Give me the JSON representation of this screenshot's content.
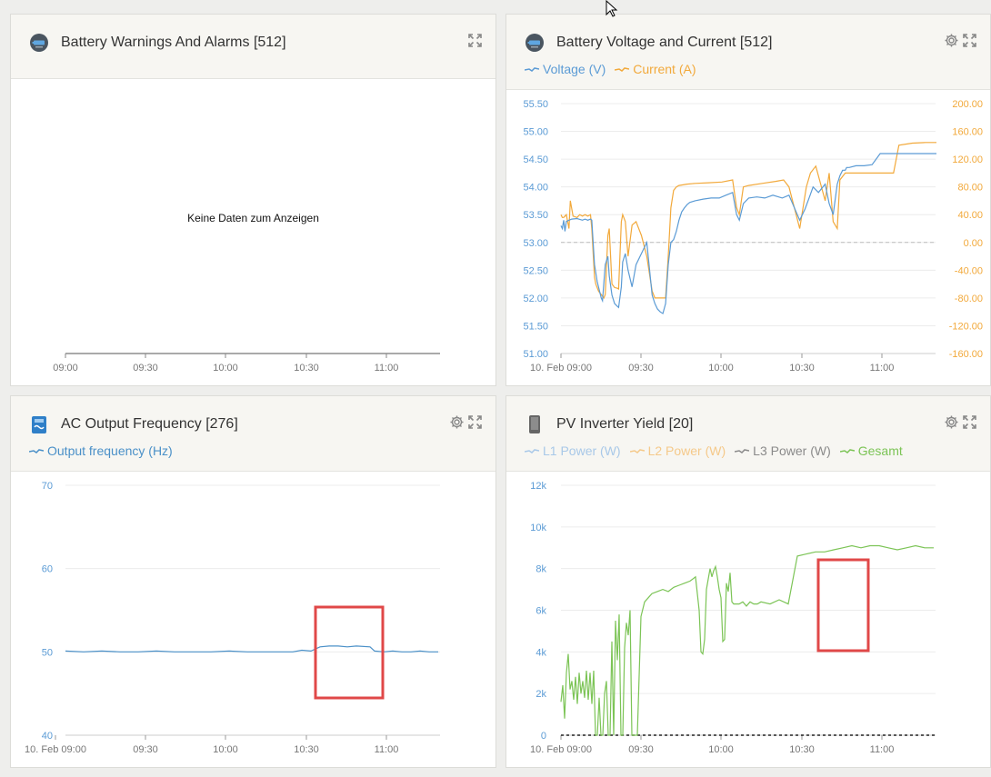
{
  "colors": {
    "voltage": "#5b9bd5",
    "current": "#f2a93b",
    "frequency": "#4a90c8",
    "l1": "#a8c8e8",
    "l2": "#f5c98a",
    "l3": "#8a8a8a",
    "gesamt": "#7cc456",
    "highlight": "#e04848",
    "axis_left": "#5b9bd5",
    "axis_right": "#f2a93b"
  },
  "panels": {
    "warnings": {
      "title": "Battery Warnings And Alarms [512]",
      "icon": "battery-icon",
      "no_data": "Keine Daten zum Anzeigen",
      "x_ticks": [
        "09:00",
        "09:30",
        "10:00",
        "10:30",
        "11:00"
      ]
    },
    "battery": {
      "title": "Battery Voltage and Current [512]",
      "icon": "battery-icon",
      "legend": [
        "Voltage (V)",
        "Current (A)"
      ]
    },
    "ac": {
      "title": "AC Output Frequency [276]",
      "icon": "inverter-icon",
      "legend": [
        "Output frequency (Hz)"
      ]
    },
    "pv": {
      "title": "PV Inverter Yield [20]",
      "icon": "pv-inverter-icon",
      "legend": [
        "L1 Power (W)",
        "L2 Power (W)",
        "L3 Power (W)",
        "Gesamt"
      ]
    }
  },
  "chart_data": [
    {
      "type": "line",
      "x_ticks": [
        "10. Feb 09:00",
        "09:30",
        "10:00",
        "10:30",
        "11:00"
      ],
      "y_ticks": [
        "55.50",
        "55.00",
        "54.50",
        "54.00",
        "53.50",
        "53.00",
        "52.50",
        "52.00",
        "51.50",
        "51.00"
      ],
      "y2_ticks": [
        "200.00",
        "160.00",
        "120.00",
        "80.00",
        "40.00",
        "0.00",
        "-40.00",
        "-80.00",
        "-120.00",
        "-160.00"
      ],
      "ylim": [
        51,
        55.5
      ],
      "y2lim": [
        -160,
        200
      ],
      "series": [
        {
          "name": "Voltage (V)",
          "x": [
            0,
            1,
            2,
            3,
            4,
            6,
            8,
            12,
            16,
            18,
            20,
            22,
            23,
            25,
            27,
            30,
            31,
            33,
            35,
            36,
            38,
            40,
            42,
            43,
            45,
            46,
            48,
            50,
            53,
            56,
            60,
            64,
            68,
            70,
            72,
            74,
            76,
            78,
            80,
            82,
            84,
            86,
            88,
            90,
            92,
            94,
            96,
            100,
            106,
            112,
            118,
            123,
            128,
            131,
            133,
            136,
            140,
            146,
            152,
            158,
            165,
            170,
            178,
            182,
            185,
            188,
            192,
            197,
            200,
            203,
            206,
            208,
            210,
            212,
            213,
            215,
            220,
            226,
            232,
            238,
            240,
            250,
            262,
            275,
            280
          ],
          "y": [
            53.3,
            53.25,
            53.4,
            53.2,
            53.38,
            53.4,
            53.42,
            53.43,
            53.4,
            53.42,
            53.4,
            53.42,
            53.4,
            52.6,
            52.3,
            52.0,
            51.95,
            52.6,
            52.75,
            52.4,
            52.05,
            51.9,
            51.85,
            51.83,
            52.2,
            52.65,
            52.8,
            52.5,
            52.2,
            52.6,
            52.8,
            53.0,
            52.05,
            51.9,
            51.8,
            51.75,
            51.72,
            51.9,
            52.6,
            53.0,
            53.05,
            53.2,
            53.4,
            53.55,
            53.62,
            53.68,
            53.72,
            53.75,
            53.78,
            53.8,
            53.8,
            53.85,
            53.9,
            53.5,
            53.4,
            53.7,
            53.8,
            53.82,
            53.8,
            53.85,
            53.8,
            53.85,
            53.4,
            53.6,
            53.8,
            54.0,
            53.9,
            54.05,
            53.7,
            53.5,
            54.05,
            54.2,
            54.3,
            54.3,
            54.35,
            54.35,
            54.38,
            54.38,
            54.4,
            54.6,
            54.6,
            54.6,
            54.6,
            54.6,
            54.6
          ]
        },
        {
          "name": "Current (A)",
          "x": [
            0,
            1,
            2,
            4,
            6,
            7,
            9,
            12,
            14,
            16,
            18,
            20,
            22,
            23,
            25,
            26,
            28,
            30,
            32,
            33,
            35,
            36,
            38,
            40,
            42,
            43,
            45,
            46,
            48,
            50,
            53,
            56,
            60,
            64,
            68,
            70,
            72,
            74,
            76,
            78,
            80,
            82,
            84,
            86,
            88,
            94,
            100,
            110,
            120,
            128,
            131,
            133,
            136,
            140,
            150,
            160,
            166,
            170,
            178,
            183,
            186,
            190,
            197,
            200,
            203,
            206,
            208,
            212,
            222,
            232,
            242,
            248,
            252,
            262,
            272,
            280
          ],
          "y": [
            40,
            36,
            36,
            40,
            20,
            60,
            38,
            36,
            40,
            38,
            40,
            38,
            40,
            20,
            -50,
            -60,
            -70,
            -75,
            -80,
            -75,
            10,
            20,
            -60,
            -65,
            -66,
            -67,
            30,
            40,
            30,
            -20,
            25,
            30,
            10,
            -20,
            -70,
            -80,
            -80,
            -80,
            -80,
            -80,
            -20,
            50,
            75,
            80,
            82,
            84,
            85,
            86,
            87,
            90,
            50,
            40,
            80,
            82,
            85,
            88,
            90,
            80,
            20,
            80,
            100,
            110,
            60,
            100,
            30,
            20,
            90,
            100,
            100,
            100,
            100,
            100,
            140,
            143,
            144,
            144
          ]
        }
      ]
    },
    {
      "type": "line",
      "x_ticks": [
        "10. Feb 09:00",
        "09:30",
        "10:00",
        "10:30",
        "11:00"
      ],
      "y_ticks": [
        "70",
        "60",
        "50",
        "40"
      ],
      "ylim": [
        40,
        70
      ],
      "series": [
        {
          "name": "Output frequency (Hz)",
          "x": [
            0,
            20,
            40,
            60,
            80,
            100,
            120,
            140,
            160,
            180,
            200,
            230,
            250,
            260,
            270,
            280,
            290,
            300,
            310,
            320,
            335,
            340,
            350,
            360,
            370,
            380,
            390,
            400,
            410
          ],
          "y": [
            50.1,
            50.0,
            50.1,
            50.0,
            50.0,
            50.1,
            50.0,
            50.0,
            50.0,
            50.1,
            50.0,
            50.0,
            50.0,
            50.2,
            50.1,
            50.6,
            50.7,
            50.7,
            50.6,
            50.7,
            50.6,
            50.1,
            50.0,
            50.1,
            50.0,
            50.0,
            50.1,
            50.0,
            50.0
          ]
        }
      ]
    },
    {
      "type": "line",
      "x_ticks": [
        "10. Feb 09:00",
        "09:30",
        "10:00",
        "10:30",
        "11:00"
      ],
      "y_ticks": [
        "12k",
        "10k",
        "8k",
        "6k",
        "4k",
        "2k",
        "0"
      ],
      "ylim": [
        0,
        12000
      ],
      "series": [
        {
          "name": "Gesamt",
          "x": [
            0,
            2,
            4,
            6,
            8,
            10,
            12,
            14,
            16,
            18,
            20,
            22,
            24,
            26,
            28,
            30,
            32,
            34,
            36,
            38,
            40,
            42,
            44,
            46,
            48,
            50,
            52,
            54,
            56,
            58,
            60,
            62,
            64,
            66,
            68,
            70,
            72,
            74,
            76,
            78,
            80,
            84,
            88,
            92,
            96,
            100,
            106,
            112,
            118,
            124,
            130,
            136,
            142,
            148,
            152,
            154,
            156,
            158,
            160,
            162,
            164,
            166,
            168,
            170,
            172,
            174,
            176,
            178,
            180,
            182,
            184,
            186,
            188,
            190,
            192,
            196,
            200,
            204,
            208,
            212,
            216,
            220,
            230,
            240,
            250,
            260,
            270,
            280,
            290,
            300,
            310,
            320,
            330,
            340,
            350,
            360,
            370,
            380,
            390,
            400,
            410
          ],
          "y": [
            1600,
            2400,
            800,
            3000,
            3900,
            2200,
            2600,
            1700,
            2800,
            1500,
            3000,
            2000,
            2600,
            1800,
            3100,
            1700,
            3000,
            1500,
            3100,
            0,
            0,
            1800,
            0,
            0,
            2000,
            2600,
            0,
            0,
            4500,
            0,
            5500,
            3600,
            5800,
            0,
            0,
            4200,
            5400,
            4800,
            6000,
            0,
            0,
            0,
            5700,
            6400,
            6600,
            6800,
            6900,
            7000,
            6900,
            7100,
            7200,
            7300,
            7400,
            7600,
            6000,
            4000,
            3900,
            4600,
            7000,
            7500,
            8000,
            7600,
            7900,
            8100,
            7600,
            7000,
            6600,
            4500,
            4600,
            7300,
            6900,
            7800,
            6400,
            6300,
            6300,
            6300,
            6400,
            6200,
            6400,
            6300,
            6300,
            6400,
            6300,
            6500,
            6300,
            8600,
            8700,
            8800,
            8800,
            8900,
            9000,
            9100,
            9000,
            9100,
            9100,
            9000,
            8900,
            9000,
            9100,
            9000,
            9000
          ]
        }
      ]
    }
  ]
}
